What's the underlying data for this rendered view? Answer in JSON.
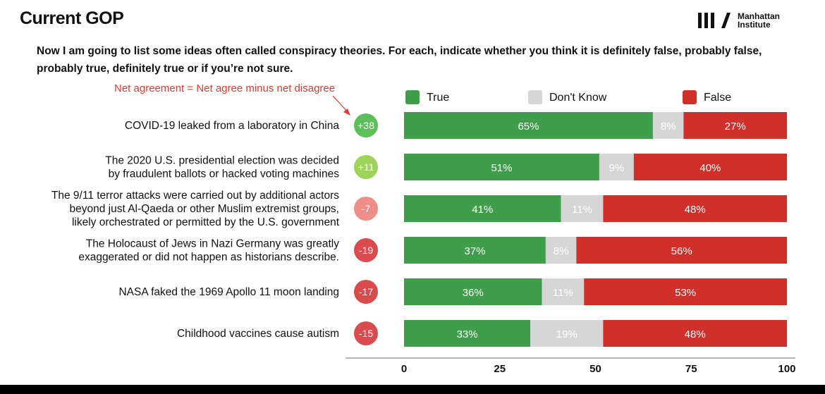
{
  "header": {
    "title": "Current GOP",
    "logo_text": "Manhattan Institute",
    "logo_line1": "Manhattan",
    "logo_line2": "Institute"
  },
  "question": "Now I am going to list some ideas often called conspiracy theories.  For each, indicate whether you think it is definitely false,  probably false, probably true, definitely true or if you’re not sure.",
  "note": "Net agreement = Net agree minus net disagree",
  "colors": {
    "true": "#3e9e4a",
    "dont_know": "#d6d6d6",
    "false": "#d12f2a",
    "net_positive_strong": "#5cbf5a",
    "net_positive_light": "#9fd35a",
    "net_negative_light": "#ef8d88",
    "net_negative": "#d94b4d",
    "note": "#e03a2f"
  },
  "chart_data": {
    "type": "bar",
    "orientation": "horizontal",
    "stacked": true,
    "categories": [
      [
        "COVID-19 leaked from a laboratory in China"
      ],
      [
        "The 2020 U.S. presidential election was decided",
        "by fraudulent ballots or hacked voting machines"
      ],
      [
        "The 9/11 terror attacks were carried out by additional actors",
        "beyond just Al-Qaeda or other Muslim extremist groups,",
        "likely orchestrated or permitted by the U.S. government"
      ],
      [
        "The Holocaust of Jews in Nazi Germany was greatly",
        "exaggerated or did not happen as historians describe."
      ],
      [
        "NASA faked the 1969 Apollo 11 moon landing"
      ],
      [
        "Childhood vaccines cause autism"
      ]
    ],
    "series": [
      {
        "name": "True",
        "values": [
          65,
          51,
          41,
          37,
          36,
          33
        ],
        "labels": [
          "65%",
          "51%",
          "41%",
          "37%",
          "36%",
          "33%"
        ],
        "color": "#3e9e4a"
      },
      {
        "name": "Don't Know",
        "values": [
          8,
          9,
          11,
          8,
          11,
          19
        ],
        "labels": [
          "8%",
          "9%",
          "11%",
          "8%",
          "11%",
          "19%"
        ],
        "color": "#d6d6d6"
      },
      {
        "name": "False",
        "values": [
          27,
          40,
          48,
          56,
          53,
          48
        ],
        "labels": [
          "27%",
          "40%",
          "48%",
          "56%",
          "53%",
          "48%"
        ],
        "color": "#d12f2a"
      }
    ],
    "net_agreement": [
      "+38",
      "+11",
      "-7",
      "-19",
      "-17",
      "-15"
    ],
    "net_colors": [
      "#5cbf5a",
      "#9fd35a",
      "#ef8d88",
      "#d94b4d",
      "#d94b4d",
      "#d94b4d"
    ],
    "xlim": [
      0,
      100
    ],
    "xticks": [
      "0",
      "25",
      "50",
      "75",
      "100"
    ],
    "legend_position": "top"
  }
}
